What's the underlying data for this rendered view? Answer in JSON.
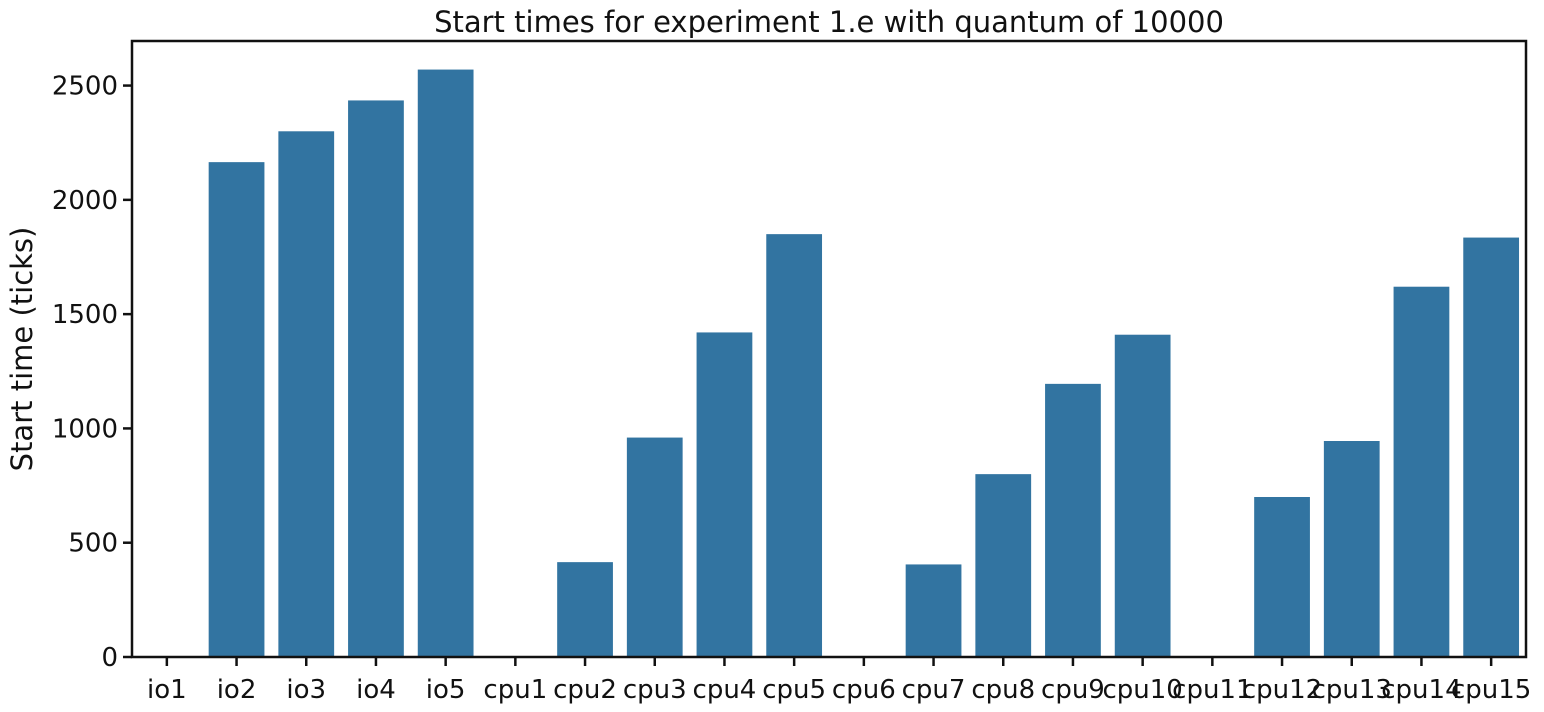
{
  "chart_data": {
    "type": "bar",
    "title": "Start times for experiment 1.e with quantum of 10000",
    "xlabel": "",
    "ylabel": "Start time (ticks)",
    "categories": [
      "io1",
      "io2",
      "io3",
      "io4",
      "io5",
      "cpu1",
      "cpu2",
      "cpu3",
      "cpu4",
      "cpu5",
      "cpu6",
      "cpu7",
      "cpu8",
      "cpu9",
      "cpu10",
      "cpu11",
      "cpu12",
      "cpu13",
      "cpu14",
      "cpu15"
    ],
    "values": [
      0,
      2165,
      2300,
      2435,
      2570,
      0,
      415,
      960,
      1420,
      1850,
      0,
      405,
      800,
      1195,
      1410,
      0,
      700,
      945,
      1620,
      1835
    ],
    "yticks": [
      0,
      500,
      1000,
      1500,
      2000,
      2500
    ],
    "ylim": [
      0,
      2695
    ],
    "bar_color": "#3274a1",
    "grid": false,
    "legend": "none"
  }
}
